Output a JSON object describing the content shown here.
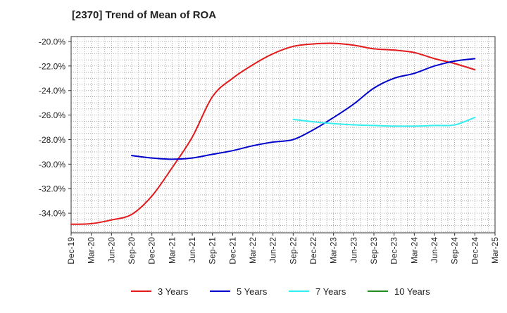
{
  "chart_data": {
    "type": "line",
    "title": "[2370]  Trend of Mean of ROA",
    "xlabel": "",
    "ylabel": "",
    "ylim": [
      -35.6,
      -19.6
    ],
    "y_ticks": [
      -20,
      -22,
      -24,
      -26,
      -28,
      -30,
      -32,
      -34
    ],
    "y_tick_labels": [
      "-20.0%",
      "-22.0%",
      "-24.0%",
      "-26.0%",
      "-28.0%",
      "-30.0%",
      "-32.0%",
      "-34.0%"
    ],
    "x_tick_labels": [
      "Dec-19",
      "Mar-20",
      "Jun-20",
      "Sep-20",
      "Dec-20",
      "Mar-21",
      "Jun-21",
      "Sep-21",
      "Dec-21",
      "Mar-22",
      "Jun-22",
      "Sep-22",
      "Dec-22",
      "Mar-23",
      "Jun-23",
      "Sep-23",
      "Dec-23",
      "Mar-24",
      "Jun-24",
      "Sep-24",
      "Dec-24",
      "Mar-25"
    ],
    "grid": true,
    "legend_position": "bottom",
    "series": [
      {
        "name": "3 Years",
        "color": "#e31a1c",
        "values": [
          -34.9,
          -34.85,
          -34.55,
          -34.1,
          -32.6,
          -30.3,
          -27.8,
          -24.5,
          -23.0,
          -21.9,
          -21.0,
          -20.4,
          -20.2,
          -20.15,
          -20.3,
          -20.6,
          -20.7,
          -20.9,
          -21.4,
          -21.8,
          -22.3,
          null
        ]
      },
      {
        "name": "5 Years",
        "color": "#0000cc",
        "values": [
          null,
          null,
          null,
          -29.3,
          -29.5,
          -29.6,
          -29.5,
          -29.2,
          -28.9,
          -28.5,
          -28.2,
          -28.0,
          -27.2,
          -26.2,
          -25.1,
          -23.8,
          -23.0,
          -22.6,
          -22.0,
          -21.6,
          -21.4,
          null
        ]
      },
      {
        "name": "7 Years",
        "color": "#33eeee",
        "values": [
          null,
          null,
          null,
          null,
          null,
          null,
          null,
          null,
          null,
          null,
          null,
          -26.35,
          -26.55,
          -26.7,
          -26.8,
          -26.85,
          -26.9,
          -26.9,
          -26.85,
          -26.8,
          -26.2,
          null
        ]
      },
      {
        "name": "10 Years",
        "color": "#228b22",
        "values": [
          null,
          null,
          null,
          null,
          null,
          null,
          null,
          null,
          null,
          null,
          null,
          null,
          null,
          null,
          null,
          null,
          null,
          null,
          null,
          null,
          null,
          null
        ]
      }
    ]
  }
}
